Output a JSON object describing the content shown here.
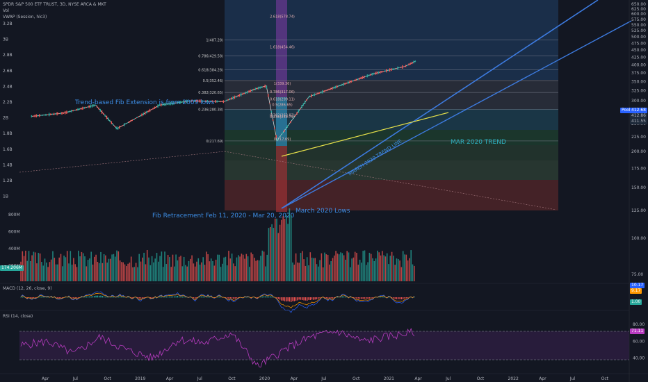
{
  "header": {
    "symbol_line": "SPDR S&P 500 ETF TRUST, 3D, NYSE ARCA & MKT",
    "vol_label": "Vol",
    "vwap_label": "VWAP (Session, hlc3)"
  },
  "indicators": {
    "macd_label": "MACD (12, 26, close, 9)",
    "rsi_label": "RSI (14, close)"
  },
  "annotations": {
    "fib_extension_note": "Trend-based Fib Extension is from 2009 lows",
    "fib_retracement_note": "Fib Retracement Feb 11, 2020 - Mar 20, 2020",
    "march_lows": "March 2020 Lows",
    "mar_trend": "MAR 2020 TREND",
    "trend_line_label": "MARCH 2020 TREND LINE"
  },
  "badges": {
    "price_label": "Pool",
    "price_main": "412.68",
    "price_2": "412.86",
    "price_3": "411.55",
    "volume": "174.206M",
    "macd_1": "10.17",
    "macd_2": "9.17",
    "macd_3": "1.00",
    "rsi": "71.11"
  },
  "colors": {
    "background": "#131722",
    "up": "#26a69a",
    "down": "#ef5350",
    "trend": "#3d7be0",
    "resistance": "#e6e04a",
    "rsi": "#b83cc0"
  },
  "chart_data": [
    {
      "type": "line",
      "title": "SPDR S&P 500 ETF TRUST, 3D, NYSE ARCA & MKT",
      "xlabel": "",
      "ylabel": "",
      "x_ticks": [
        "Apr",
        "Jul",
        "Oct",
        "2019",
        "Apr",
        "Jul",
        "Oct",
        "2020",
        "Apr",
        "Jul",
        "Oct",
        "2021",
        "Apr",
        "Jul",
        "Oct",
        "2022",
        "Apr",
        "Jul",
        "Oct"
      ],
      "right_ticks": [
        "650.00",
        "625.00",
        "600.00",
        "575.00",
        "550.00",
        "525.00",
        "500.00",
        "475.00",
        "450.00",
        "425.00",
        "400.00",
        "375.00",
        "350.00",
        "325.00",
        "300.00",
        "275.00",
        "250.00",
        "225.00",
        "200.00",
        "175.00",
        "150.00",
        "125.00",
        "100.00",
        "75.00"
      ],
      "volume_ticks": [
        "800M",
        "600M",
        "400M",
        "200M"
      ],
      "left_ticks": [
        "3.2B",
        "3B",
        "2.8B",
        "2.6B",
        "2.4B",
        "2.2B",
        "2B",
        "1.8B",
        "1.6B",
        "1.4B",
        "1.2B",
        "1B"
      ],
      "log_scale": true,
      "ylim": [
        200,
        660
      ],
      "series": [
        {
          "name": "SPY",
          "x": [
            "2018-04",
            "2018-07",
            "2018-10",
            "2018-12",
            "2019-04",
            "2019-07",
            "2019-10",
            "2020-01",
            "2020-02",
            "2020-03",
            "2020-06",
            "2020-09",
            "2020-12",
            "2021-03",
            "2021-04"
          ],
          "values": [
            265,
            272,
            290,
            240,
            290,
            300,
            298,
            330,
            338,
            218,
            310,
            340,
            372,
            395,
            412
          ]
        }
      ],
      "fib_extension": [
        {
          "label": "0.618(384.28)",
          "value": 384.28
        },
        {
          "label": "0.786(429.58)",
          "value": 429.58
        },
        {
          "label": "1(487.28)",
          "value": 487.28
        },
        {
          "label": "0.5(352.46)",
          "value": 352.46
        },
        {
          "label": "0.382(320.65)",
          "value": 320.65
        },
        {
          "label": "0.236(280.38)",
          "value": 280.38
        },
        {
          "label": "0(217.69)",
          "value": 217.69
        }
      ],
      "fib_retracement": [
        {
          "label": "2.618(578.74)",
          "value": 578.74
        },
        {
          "label": "1.618(454.46)",
          "value": 454.46
        },
        {
          "label": "1(339.36)",
          "value": 339.36
        },
        {
          "label": "0.786(317.06)",
          "value": 317.06
        },
        {
          "label": "0.618(299.11)",
          "value": 299.11
        },
        {
          "label": "0.5(286.65)",
          "value": 286.65
        },
        {
          "label": "0.382(263.82)",
          "value": 263.82
        },
        {
          "label": "0.236(259.79)",
          "value": 259.79
        },
        {
          "label": "0(217.69)",
          "value": 217.69
        }
      ]
    },
    {
      "type": "line",
      "title": "RSI (14, close)",
      "right_ticks": [
        "80.00",
        "60.00",
        "40.00"
      ],
      "ylim": [
        20,
        90
      ],
      "series": [
        {
          "name": "RSI",
          "values": [
            55,
            60,
            45,
            65,
            50,
            40,
            62,
            58,
            70,
            30,
            50,
            65,
            72,
            60,
            66,
            71
          ]
        }
      ]
    }
  ]
}
